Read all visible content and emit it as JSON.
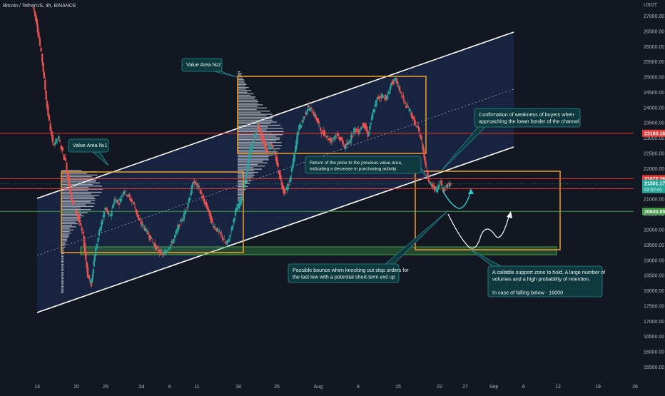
{
  "header": {
    "title": "Bitcoin / TetherUS, 4h, BINANCE",
    "currency": "USDT"
  },
  "colors": {
    "background": "#131722",
    "channel_fill": "#1b2a4a",
    "up_candle": "#26a69a",
    "down_candle": "#ef5350",
    "orange": "#f0a030",
    "red_line": "#e53935",
    "green_line": "#43a047",
    "note_fill": "#0e3a3f",
    "note_border": "#2a8a90",
    "cyan_arrow": "#2fc7c7"
  },
  "chart_data": {
    "type": "candlestick",
    "symbol": "BTCUSDT",
    "interval": "4h",
    "exchange": "BINANCE",
    "y_axis": {
      "range": [
        15300,
        27300
      ],
      "ticks": [
        15500,
        16000,
        16500,
        17000,
        17500,
        18000,
        18500,
        19000,
        19500,
        20000,
        20500,
        21000,
        21500,
        22000,
        22500,
        23000,
        23500,
        24000,
        24500,
        25000,
        25500,
        26000,
        26500,
        27000
      ]
    },
    "x_axis": {
      "ticks": [
        "13",
        "20",
        "25",
        "Jul",
        "6",
        "11",
        "18",
        "25",
        "Aug",
        "8",
        "15",
        "22",
        "27",
        "Sep",
        "6",
        "12",
        "19",
        "26"
      ]
    },
    "price_path": [
      [
        0,
        27300
      ],
      [
        0.3,
        26800
      ],
      [
        0.8,
        25500
      ],
      [
        1.2,
        24000
      ],
      [
        1.7,
        22800
      ],
      [
        2.2,
        23000
      ],
      [
        2.8,
        22200
      ],
      [
        3.3,
        21000
      ],
      [
        3.8,
        20500
      ],
      [
        4.3,
        19800
      ],
      [
        4.7,
        18500
      ],
      [
        5,
        18200
      ],
      [
        5.3,
        19200
      ],
      [
        5.8,
        20100
      ],
      [
        6.2,
        20700
      ],
      [
        6.6,
        20400
      ],
      [
        7,
        21000
      ],
      [
        7.4,
        20900
      ],
      [
        7.8,
        21300
      ],
      [
        8.2,
        21100
      ],
      [
        8.7,
        20800
      ],
      [
        9.1,
        20300
      ],
      [
        9.5,
        20100
      ],
      [
        10,
        19800
      ],
      [
        10.4,
        19500
      ],
      [
        10.8,
        19300
      ],
      [
        11.2,
        19200
      ],
      [
        11.6,
        19400
      ],
      [
        12,
        19600
      ],
      [
        12.5,
        20100
      ],
      [
        13,
        20500
      ],
      [
        13.4,
        21000
      ],
      [
        13.8,
        21600
      ],
      [
        14.2,
        21400
      ],
      [
        14.6,
        21000
      ],
      [
        15,
        20700
      ],
      [
        15.4,
        20200
      ],
      [
        15.8,
        20000
      ],
      [
        16.2,
        19800
      ],
      [
        16.6,
        19500
      ],
      [
        17,
        19900
      ],
      [
        17.4,
        20600
      ],
      [
        17.8,
        20900
      ],
      [
        18.2,
        21500
      ],
      [
        18.6,
        22500
      ],
      [
        19,
        23000
      ],
      [
        19.3,
        23400
      ],
      [
        19.7,
        23000
      ],
      [
        20.1,
        22600
      ],
      [
        20.5,
        22800
      ],
      [
        20.9,
        22300
      ],
      [
        21.3,
        21600
      ],
      [
        21.6,
        21200
      ],
      [
        22,
        21500
      ],
      [
        22.4,
        22300
      ],
      [
        22.8,
        23300
      ],
      [
        23.2,
        23600
      ],
      [
        23.6,
        24000
      ],
      [
        24,
        23900
      ],
      [
        24.4,
        23600
      ],
      [
        24.8,
        23200
      ],
      [
        25.2,
        23100
      ],
      [
        25.6,
        22900
      ],
      [
        26,
        23100
      ],
      [
        26.4,
        23000
      ],
      [
        26.8,
        22700
      ],
      [
        27.2,
        22900
      ],
      [
        27.6,
        23300
      ],
      [
        28,
        23200
      ],
      [
        28.4,
        23500
      ],
      [
        28.8,
        23100
      ],
      [
        29.2,
        23800
      ],
      [
        29.6,
        24300
      ],
      [
        30,
        24400
      ],
      [
        30.4,
        24300
      ],
      [
        30.8,
        24800
      ],
      [
        31.2,
        24900
      ],
      [
        31.6,
        24500
      ],
      [
        32,
        24100
      ],
      [
        32.4,
        23900
      ],
      [
        32.8,
        23500
      ],
      [
        33.2,
        23200
      ],
      [
        33.5,
        22700
      ],
      [
        33.8,
        22000
      ],
      [
        34.1,
        21500
      ],
      [
        34.4,
        21400
      ],
      [
        34.7,
        21300
      ],
      [
        35,
        21600
      ],
      [
        35.3,
        21300
      ],
      [
        35.6,
        21450
      ],
      [
        35.9,
        21500
      ]
    ],
    "horizontal_levels": [
      {
        "price": 23160.16,
        "label": "23160.16",
        "color": "red"
      },
      {
        "price": 21672.76,
        "label": "21672.76",
        "color": "red"
      },
      {
        "price": 21347.7,
        "label": "21347.70",
        "color": "red"
      },
      {
        "price": 20600.0,
        "label": "20600.00",
        "color": "green"
      }
    ],
    "current_price": {
      "price": 21501.17,
      "label": "21501.17",
      "countdown": "02:07:01"
    },
    "annotations": {
      "value_area_1": "Value Area №1",
      "value_area_2": "Value Area №2",
      "note_confirmation": [
        "Confirmation of weakness of buyers when",
        "approaching the lower border of the channel"
      ],
      "note_return": [
        "Return of the price to the previous value area,",
        "indicating a decrease in purchasing activity"
      ],
      "note_bounce": [
        "Possible bounce when knocking out stop orders for",
        "the last low with a potential short-term exit up"
      ],
      "note_support": [
        "A callable support zone to hold. A large number of",
        "volumes and a high probability of retention.",
        "",
        "In case of falling below - 16000"
      ]
    }
  }
}
